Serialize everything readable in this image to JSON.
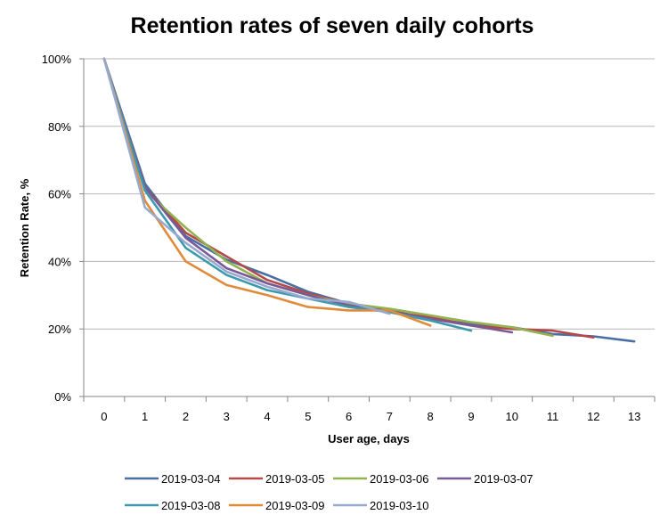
{
  "chart_data": {
    "type": "line",
    "title": "Retention rates of seven daily cohorts",
    "xlabel": "User age, days",
    "ylabel": "Retention Rate, %",
    "xlim": [
      0,
      13
    ],
    "ylim": [
      0,
      100
    ],
    "x_ticks": [
      "0",
      "1",
      "2",
      "3",
      "4",
      "5",
      "6",
      "7",
      "8",
      "9",
      "10",
      "11",
      "12",
      "13"
    ],
    "y_ticks": [
      "0%",
      "20%",
      "40%",
      "60%",
      "80%",
      "100%"
    ],
    "grid": true,
    "legend_position": "bottom",
    "series": [
      {
        "name": "2019-03-04",
        "color": "#4a6fa5",
        "x": [
          0,
          1,
          2,
          3,
          4,
          5,
          6,
          7,
          8,
          9,
          10,
          11,
          12,
          13
        ],
        "values": [
          100,
          63.0,
          47.5,
          40.5,
          36.0,
          31.0,
          27.5,
          25.5,
          23.0,
          21.5,
          20.5,
          18.5,
          17.8,
          16.3
        ]
      },
      {
        "name": "2019-03-05",
        "color": "#b34a48",
        "x": [
          0,
          1,
          2,
          3,
          4,
          5,
          6,
          7,
          8,
          9,
          10,
          11,
          12
        ],
        "values": [
          100,
          62.0,
          48.5,
          41.5,
          34.5,
          30.5,
          27.5,
          25.0,
          23.5,
          21.0,
          20.0,
          19.5,
          17.5
        ]
      },
      {
        "name": "2019-03-06",
        "color": "#93b350",
        "x": [
          0,
          1,
          2,
          3,
          4,
          5,
          6,
          7,
          8,
          9,
          10,
          11
        ],
        "values": [
          100,
          61.0,
          50.0,
          40.0,
          33.5,
          30.0,
          27.5,
          26.0,
          24.0,
          22.0,
          20.5,
          18.0
        ]
      },
      {
        "name": "2019-03-07",
        "color": "#7a5a96",
        "x": [
          0,
          1,
          2,
          3,
          4,
          5,
          6,
          7,
          8,
          9,
          10
        ],
        "values": [
          100,
          62.0,
          47.0,
          38.0,
          33.5,
          30.0,
          27.0,
          25.0,
          23.0,
          21.0,
          19.0
        ]
      },
      {
        "name": "2019-03-08",
        "color": "#3d9aad",
        "x": [
          0,
          1,
          2,
          3,
          4,
          5,
          6,
          7,
          8,
          9
        ],
        "values": [
          100,
          61.0,
          44.0,
          36.0,
          31.5,
          29.0,
          26.5,
          25.0,
          22.5,
          19.5
        ]
      },
      {
        "name": "2019-03-09",
        "color": "#e08b3a",
        "x": [
          0,
          1,
          2,
          3,
          4,
          5,
          6,
          7,
          8
        ],
        "values": [
          100,
          58.0,
          40.0,
          33.0,
          30.0,
          26.5,
          25.5,
          25.5,
          21.0
        ]
      },
      {
        "name": "2019-03-10",
        "color": "#98a9cf",
        "x": [
          0,
          1,
          2,
          3,
          4,
          5,
          6,
          7
        ],
        "values": [
          100,
          56.0,
          45.5,
          37.0,
          32.5,
          29.0,
          28.0,
          24.5
        ]
      }
    ]
  }
}
